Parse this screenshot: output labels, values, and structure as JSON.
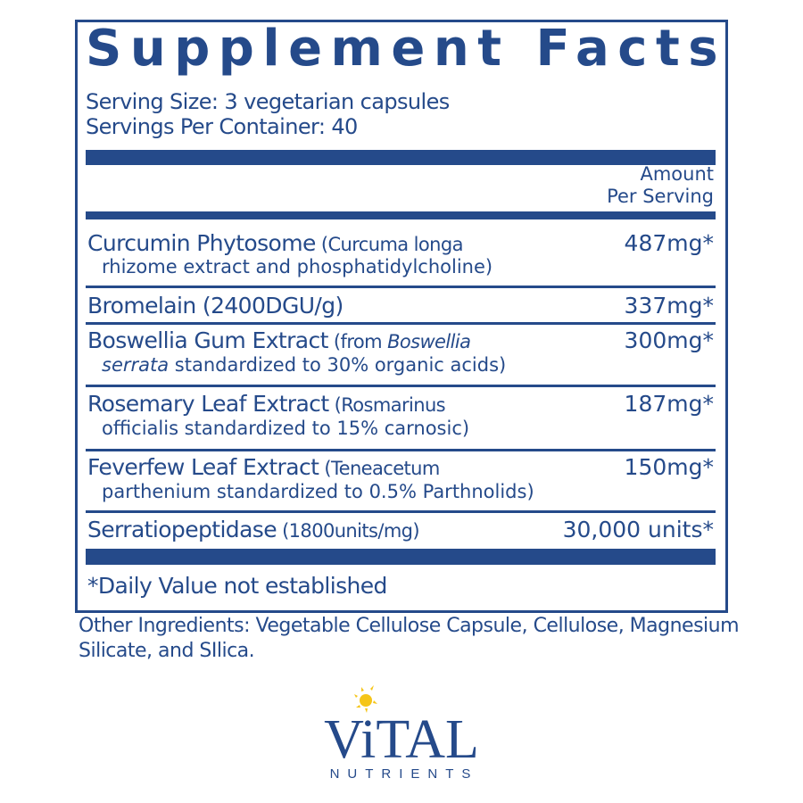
{
  "title": "Supplement Facts",
  "serving_size": "Serving Size: 3 vegetarian capsules",
  "servings_per_container": "Servings Per Container: 40",
  "column_header": {
    "line1": "Amount",
    "line2": "Per Serving"
  },
  "rows": [
    {
      "name": "Curcumin Phytosome",
      "detail1": " (Curcuma longa",
      "detail2": "rhizome extract and phosphatidylcholine)",
      "amount": "487mg*"
    },
    {
      "name": "Bromelain (2400DGU/g)",
      "amount": "337mg*"
    },
    {
      "name": "Boswellia Gum Extract",
      "detail1": " (from ",
      "detail1_italic": "Boswellia",
      "detail2_italic": "serrata",
      "detail2": " standardized to 30% organic acids)",
      "amount": "300mg*"
    },
    {
      "name": "Rosemary Leaf Extract",
      "detail1": " (Rosmarinus",
      "detail2": "officialis standardized to 15%  carnosic)",
      "amount": "187mg*"
    },
    {
      "name": "Feverfew Leaf Extract",
      "detail1": " (Teneacetum",
      "detail2": "parthenium standardized to 0.5% Parthnolids)",
      "amount": "150mg*"
    },
    {
      "name": "Serratiopeptidase",
      "detail1": " (1800units/mg)",
      "amount": "30,000 units*"
    }
  ],
  "footnote": "*Daily Value not established",
  "other_ingredients": "Other Ingredients:  Vegetable Cellulose Capsule, Cellulose, Magnesium Silicate, and SIlica.",
  "logo": {
    "brand": "ViTAL",
    "tagline": "NUTRIENTS"
  },
  "colors": {
    "primary": "#254a8a",
    "sun": "#f5c518"
  }
}
